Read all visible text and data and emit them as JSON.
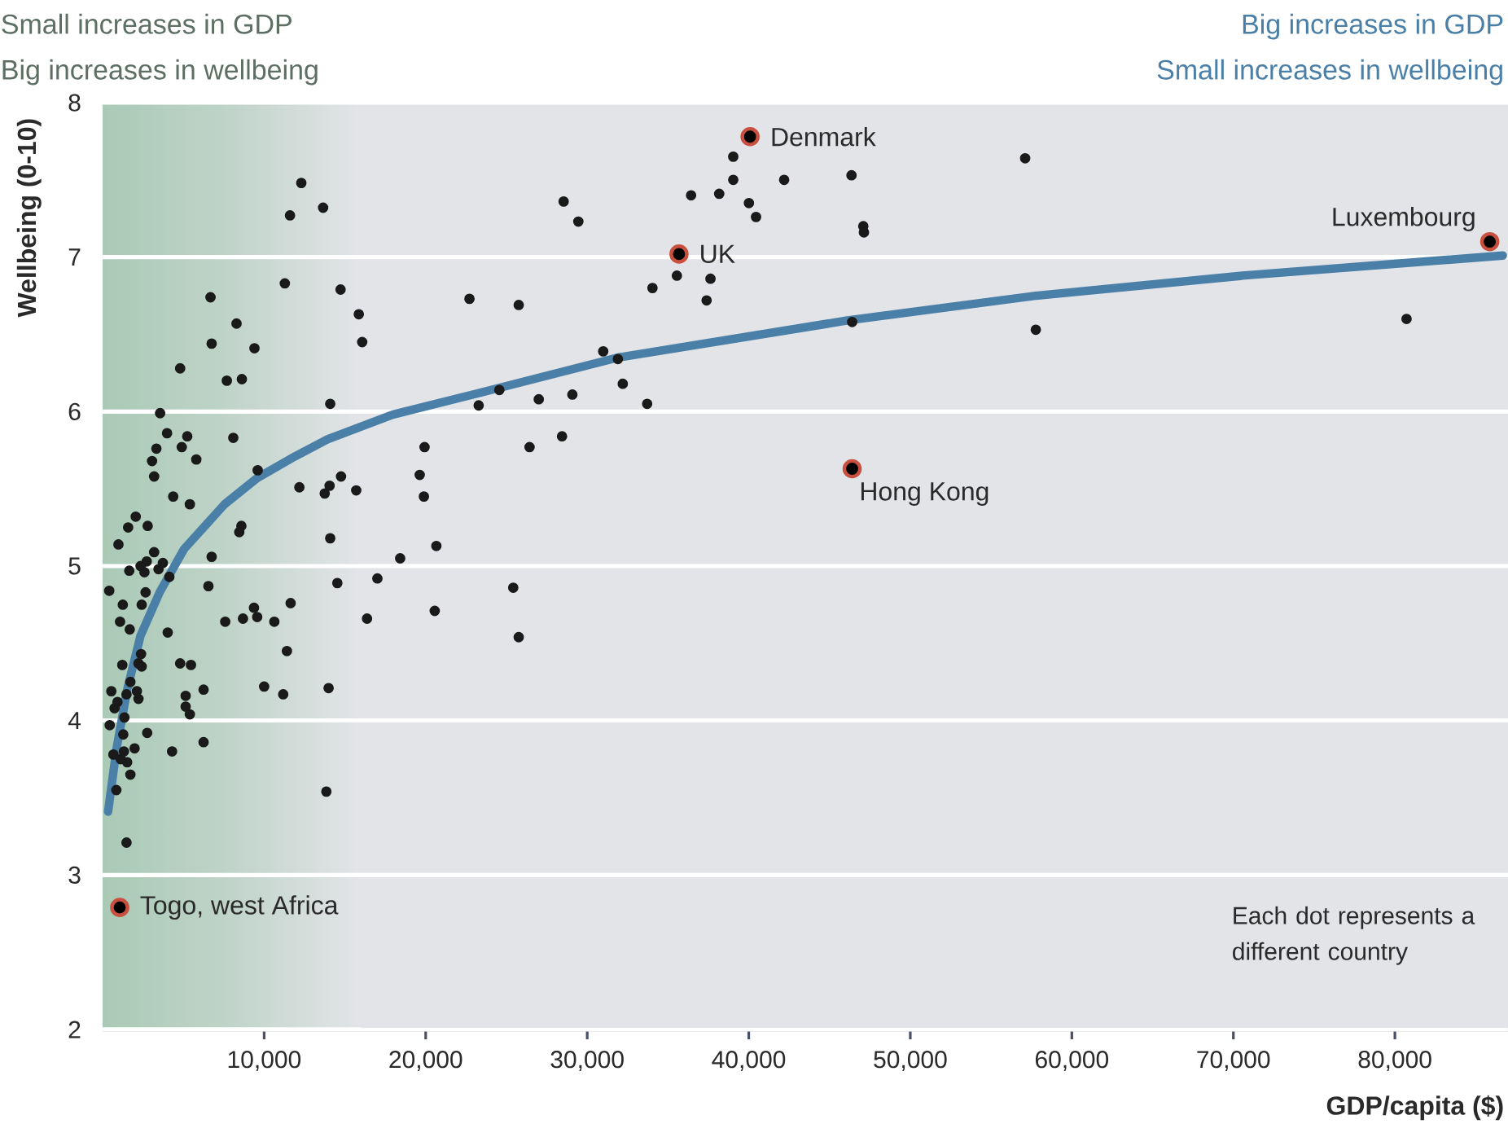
{
  "chart_data": {
    "type": "scatter",
    "xlabel": "GDP/capita ($)",
    "ylabel": "Wellbeing (0-10)",
    "xlim": [
      0,
      87000
    ],
    "ylim": [
      2,
      8
    ],
    "xticks": [
      {
        "value": 10000,
        "label": "10,000"
      },
      {
        "value": 20000,
        "label": "20,000"
      },
      {
        "value": 30000,
        "label": "30,000"
      },
      {
        "value": 40000,
        "label": "40,000"
      },
      {
        "value": 50000,
        "label": "50,000"
      },
      {
        "value": 60000,
        "label": "60,000"
      },
      {
        "value": 70000,
        "label": "70,000"
      },
      {
        "value": 80000,
        "label": "80,000"
      }
    ],
    "yticks": [
      2,
      3,
      4,
      5,
      6,
      7,
      8
    ],
    "grid": "y",
    "marker": "circle",
    "bands": [
      {
        "axis": "x",
        "from": 0,
        "to": 16000,
        "color": "#a9c9b5"
      }
    ],
    "annotations": [
      "Small increases in GDP",
      "Big increases in wellbeing",
      "Big increases in GDP",
      "Small increases in wellbeing",
      "Each dot represents a different country",
      {
        "text": "Denmark",
        "x": 40080,
        "y": 7.78
      },
      {
        "text": "UK",
        "x": 35680,
        "y": 7.02
      },
      {
        "text": "Luxembourg",
        "x": 85870,
        "y": 7.1
      },
      {
        "text": "Hong  Kong",
        "x": 46400,
        "y": 5.63
      },
      {
        "text": "Togo, west Africa",
        "x": 1060,
        "y": 2.79
      }
    ],
    "series": [
      {
        "color": "#1a1a1a",
        "x": [
          12300,
          11600,
          13650,
          6680,
          11280,
          14730,
          8290,
          15860,
          6750,
          9400,
          16070,
          4800,
          7690,
          8620,
          14090,
          3560,
          3990,
          3330,
          5240,
          4900,
          8090,
          3060,
          5800,
          9600,
          3190,
          4370,
          5400,
          12180,
          13750,
          14050,
          14760,
          15700,
          2050,
          1580,
          2790,
          980,
          8590,
          8460,
          14090,
          3190,
          6750,
          2730,
          2350,
          1650,
          2590,
          3460,
          3730,
          410,
          2660,
          4130,
          6550,
          14530,
          17010,
          1250,
          2420,
          1080,
          1680,
          4030,
          7590,
          8690,
          9370,
          9570,
          10630,
          11640,
          16370,
          11410,
          2380,
          1220,
          2220,
          2420,
          4800,
          5470,
          1720,
          540,
          1480,
          2120,
          2220,
          6250,
          10000,
          11180,
          13990,
          5140,
          5140,
          5400,
          740,
          920,
          1350,
          440,
          1280,
          2760,
          1980,
          6250,
          4300,
          670,
          1320,
          1120,
          1520,
          1720,
          850,
          13850,
          1480,
          39040,
          39040,
          42190,
          36430,
          38170,
          40010,
          40450,
          28540,
          29450,
          35550,
          37630,
          37390,
          34040,
          22710,
          25760,
          30990,
          31900,
          32200,
          24560,
          23280,
          27000,
          29080,
          33710,
          19930,
          19630,
          19890,
          26430,
          28440,
          20660,
          18420,
          25420,
          20560,
          25760,
          46360,
          57110,
          47090,
          47130,
          46400,
          57770,
          80720
        ],
        "values": [
          7.48,
          7.27,
          7.32,
          6.74,
          6.83,
          6.79,
          6.57,
          6.63,
          6.44,
          6.41,
          6.45,
          6.28,
          6.2,
          6.21,
          6.05,
          5.99,
          5.86,
          5.76,
          5.84,
          5.77,
          5.83,
          5.68,
          5.69,
          5.62,
          5.58,
          5.45,
          5.4,
          5.51,
          5.47,
          5.52,
          5.58,
          5.49,
          5.32,
          5.25,
          5.26,
          5.14,
          5.26,
          5.22,
          5.18,
          5.09,
          5.06,
          5.03,
          5.0,
          4.97,
          4.96,
          4.98,
          5.02,
          4.84,
          4.83,
          4.93,
          4.87,
          4.89,
          4.92,
          4.75,
          4.75,
          4.64,
          4.59,
          4.57,
          4.64,
          4.66,
          4.73,
          4.67,
          4.64,
          4.76,
          4.66,
          4.45,
          4.43,
          4.36,
          4.37,
          4.35,
          4.37,
          4.36,
          4.25,
          4.19,
          4.17,
          4.19,
          4.14,
          4.2,
          4.22,
          4.17,
          4.21,
          4.16,
          4.09,
          4.04,
          4.08,
          4.12,
          4.02,
          3.97,
          3.91,
          3.92,
          3.82,
          3.86,
          3.8,
          3.78,
          3.8,
          3.75,
          3.73,
          3.65,
          3.55,
          3.54,
          3.21,
          7.65,
          7.5,
          7.5,
          7.4,
          7.41,
          7.35,
          7.26,
          7.36,
          7.23,
          6.88,
          6.86,
          6.72,
          6.8,
          6.73,
          6.69,
          6.39,
          6.34,
          6.18,
          6.14,
          6.04,
          6.08,
          6.11,
          6.05,
          5.77,
          5.59,
          5.45,
          5.77,
          5.84,
          5.13,
          5.05,
          4.86,
          4.71,
          4.54,
          7.53,
          7.64,
          7.2,
          7.16,
          6.58,
          6.53,
          6.6
        ]
      },
      {
        "color": "#c9503e",
        "x": [
          40080,
          35680,
          85870,
          46400,
          1060
        ],
        "values": [
          7.78,
          7.02,
          7.1,
          5.63,
          2.79
        ]
      },
      {
        "type": "line",
        "color": "#4a7fa8",
        "marker": "none",
        "x": [
          340,
          850,
          1520,
          2350,
          3530,
          5040,
          7550,
          9570,
          11910,
          13920,
          17950,
          23310,
          31900,
          46110,
          57770,
          70560,
          86680
        ],
        "values": [
          3.41,
          3.81,
          4.2,
          4.55,
          4.83,
          5.11,
          5.4,
          5.57,
          5.71,
          5.82,
          5.98,
          6.12,
          6.35,
          6.59,
          6.75,
          6.88,
          7.01
        ]
      }
    ]
  }
}
